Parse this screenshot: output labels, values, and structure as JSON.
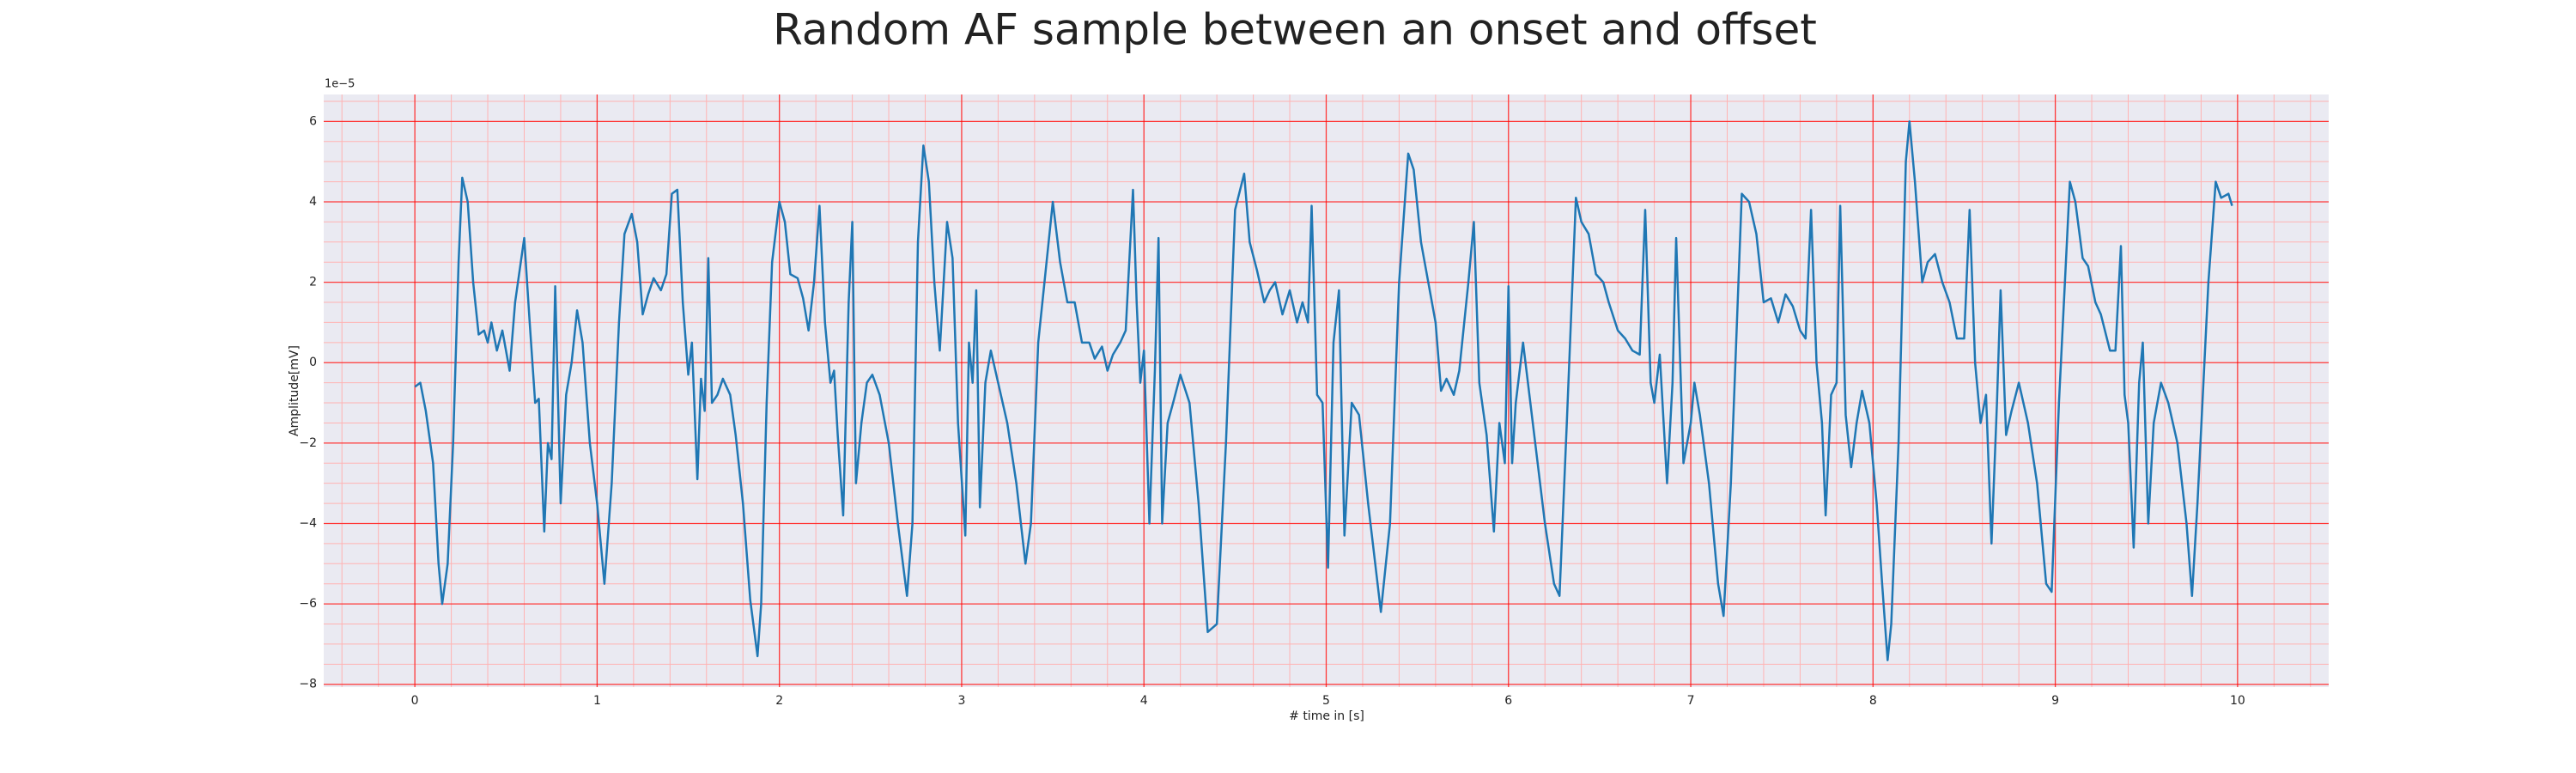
{
  "chart_data": {
    "type": "line",
    "title": "Random AF sample between an onset and offset",
    "x_label": "# time in [s]",
    "y_label": "Amplitude[mV]",
    "y_offset_label": "1e−5",
    "color": "#1f77b4",
    "background": "#eaeaf2",
    "grid": true,
    "grid_color": "#ff0000",
    "minor_grid": {
      "x_step": 0.2,
      "y_step": 0.5,
      "color": "#ffb3b3"
    },
    "xlim": [
      -0.5,
      10.5
    ],
    "ylim": [
      -8.07,
      6.67
    ],
    "xticks": [
      0,
      1,
      2,
      3,
      4,
      5,
      6,
      7,
      8,
      9,
      10
    ],
    "yticks": [
      {
        "value": -8,
        "label": "−8"
      },
      {
        "value": -6,
        "label": "−6"
      },
      {
        "value": -4,
        "label": "−4"
      },
      {
        "value": -2,
        "label": "−2"
      },
      0,
      2,
      4,
      6
    ],
    "x": [
      0,
      0.03,
      0.06,
      0.1,
      0.13,
      0.15,
      0.18,
      0.21,
      0.24,
      0.26,
      0.29,
      0.32,
      0.35,
      0.38,
      0.4,
      0.42,
      0.45,
      0.48,
      0.52,
      0.55,
      0.6,
      0.63,
      0.66,
      0.68,
      0.71,
      0.73,
      0.75,
      0.77,
      0.8,
      0.83,
      0.86,
      0.89,
      0.92,
      0.96,
      1,
      1.04,
      1.08,
      1.12,
      1.15,
      1.19,
      1.22,
      1.25,
      1.28,
      1.31,
      1.35,
      1.38,
      1.41,
      1.44,
      1.47,
      1.5,
      1.52,
      1.55,
      1.57,
      1.59,
      1.61,
      1.63,
      1.66,
      1.69,
      1.73,
      1.76,
      1.8,
      1.84,
      1.88,
      1.9,
      1.93,
      1.96,
      2,
      2.03,
      2.06,
      2.1,
      2.13,
      2.16,
      2.19,
      2.22,
      2.25,
      2.28,
      2.3,
      2.32,
      2.35,
      2.38,
      2.4,
      2.42,
      2.45,
      2.48,
      2.51,
      2.55,
      2.6,
      2.65,
      2.7,
      2.73,
      2.76,
      2.79,
      2.82,
      2.85,
      2.88,
      2.92,
      2.95,
      2.98,
      3.02,
      3.04,
      3.06,
      3.08,
      3.1,
      3.13,
      3.16,
      3.2,
      3.25,
      3.3,
      3.35,
      3.38,
      3.42,
      3.5,
      3.54,
      3.58,
      3.62,
      3.66,
      3.7,
      3.73,
      3.77,
      3.8,
      3.83,
      3.87,
      3.9,
      3.94,
      3.96,
      3.98,
      4,
      4.03,
      4.06,
      4.08,
      4.1,
      4.13,
      4.16,
      4.2,
      4.25,
      4.3,
      4.35,
      4.4,
      4.45,
      4.5,
      4.55,
      4.58,
      4.62,
      4.66,
      4.69,
      4.72,
      4.76,
      4.8,
      4.84,
      4.87,
      4.9,
      4.92,
      4.95,
      4.98,
      5.01,
      5.04,
      5.07,
      5.1,
      5.14,
      5.18,
      5.23,
      5.3,
      5.35,
      5.4,
      5.45,
      5.48,
      5.52,
      5.56,
      5.6,
      5.63,
      5.66,
      5.7,
      5.73,
      5.78,
      5.81,
      5.84,
      5.88,
      5.92,
      5.95,
      5.98,
      6,
      6.02,
      6.04,
      6.08,
      6.12,
      6.16,
      6.2,
      6.25,
      6.28,
      6.32,
      6.37,
      6.4,
      6.44,
      6.48,
      6.52,
      6.55,
      6.6,
      6.64,
      6.68,
      6.72,
      6.75,
      6.78,
      6.8,
      6.83,
      6.87,
      6.9,
      6.92,
      6.96,
      7,
      7.02,
      7.05,
      7.1,
      7.15,
      7.18,
      7.22,
      7.28,
      7.32,
      7.36,
      7.4,
      7.44,
      7.48,
      7.52,
      7.56,
      7.6,
      7.63,
      7.66,
      7.69,
      7.72,
      7.74,
      7.77,
      7.8,
      7.82,
      7.85,
      7.88,
      7.91,
      7.94,
      7.98,
      8.02,
      8.05,
      8.08,
      8.1,
      8.14,
      8.18,
      8.2,
      8.23,
      8.27,
      8.3,
      8.34,
      8.38,
      8.42,
      8.46,
      8.5,
      8.53,
      8.56,
      8.59,
      8.62,
      8.65,
      8.68,
      8.7,
      8.73,
      8.76,
      8.8,
      8.85,
      8.9,
      8.95,
      8.98,
      9.02,
      9.08,
      9.11,
      9.15,
      9.18,
      9.22,
      9.25,
      9.3,
      9.33,
      9.36,
      9.38,
      9.4,
      9.43,
      9.46,
      9.48,
      9.51,
      9.54,
      9.58,
      9.62,
      9.67,
      9.72,
      9.75,
      9.78,
      9.84,
      9.88,
      9.91,
      9.95,
      9.97
    ],
    "values": [
      -0.6,
      -0.5,
      -1.2,
      -2.5,
      -5.0,
      -6.0,
      -5.0,
      -2.0,
      2.5,
      4.6,
      4.0,
      2.0,
      0.7,
      0.8,
      0.5,
      1.0,
      0.3,
      0.8,
      -0.2,
      1.5,
      3.1,
      1.0,
      -1.0,
      -0.9,
      -4.2,
      -2.0,
      -2.4,
      1.9,
      -3.5,
      -0.8,
      0.0,
      1.3,
      0.5,
      -2.0,
      -3.5,
      -5.5,
      -3.0,
      1.0,
      3.2,
      3.7,
      3.0,
      1.2,
      1.7,
      2.1,
      1.8,
      2.2,
      4.2,
      4.3,
      1.5,
      -0.3,
      0.5,
      -2.9,
      -0.4,
      -1.2,
      2.6,
      -1.0,
      -0.8,
      -0.4,
      -0.8,
      -1.8,
      -3.5,
      -5.9,
      -7.3,
      -6.0,
      -1.0,
      2.5,
      4.0,
      3.5,
      2.2,
      2.1,
      1.6,
      0.8,
      2.0,
      3.9,
      1.0,
      -0.5,
      -0.2,
      -1.8,
      -3.8,
      1.5,
      3.5,
      -3.0,
      -1.5,
      -0.5,
      -0.3,
      -0.8,
      -2.0,
      -4.0,
      -5.8,
      -4.0,
      3.0,
      5.4,
      4.5,
      2.0,
      0.3,
      3.5,
      2.6,
      -1.5,
      -4.3,
      0.5,
      -0.5,
      1.8,
      -3.6,
      -0.5,
      0.3,
      -0.5,
      -1.5,
      -3.0,
      -5.0,
      -4.0,
      0.5,
      4.0,
      2.5,
      1.5,
      1.5,
      0.5,
      0.5,
      0.1,
      0.4,
      -0.2,
      0.2,
      0.5,
      0.8,
      4.3,
      1.5,
      -0.5,
      0.3,
      -4.0,
      -0.2,
      3.1,
      -4.0,
      -1.5,
      -1.0,
      -0.3,
      -1.0,
      -3.5,
      -6.7,
      -6.5,
      -2.0,
      3.8,
      4.7,
      3.0,
      2.3,
      1.5,
      1.8,
      2.0,
      1.2,
      1.8,
      1.0,
      1.5,
      1.0,
      3.9,
      -0.8,
      -1.0,
      -5.1,
      0.5,
      1.8,
      -4.3,
      -1.0,
      -1.3,
      -3.5,
      -6.2,
      -4.0,
      2.0,
      5.2,
      4.8,
      3.0,
      2.0,
      1.0,
      -0.7,
      -0.4,
      -0.8,
      -0.2,
      2.0,
      3.5,
      -0.5,
      -1.8,
      -4.2,
      -1.5,
      -2.5,
      1.9,
      -2.5,
      -1.0,
      0.5,
      -1.0,
      -2.5,
      -4.0,
      -5.5,
      -5.8,
      -1.5,
      4.1,
      3.5,
      3.2,
      2.2,
      2.0,
      1.5,
      0.8,
      0.6,
      0.3,
      0.2,
      3.8,
      -0.5,
      -1.0,
      0.2,
      -3.0,
      -0.5,
      3.1,
      -2.5,
      -1.5,
      -0.5,
      -1.3,
      -3.0,
      -5.5,
      -6.3,
      -3.0,
      4.2,
      4.0,
      3.2,
      1.5,
      1.6,
      1.0,
      1.7,
      1.4,
      0.8,
      0.6,
      3.8,
      0.0,
      -1.5,
      -3.8,
      -0.8,
      -0.5,
      3.9,
      -1.3,
      -2.6,
      -1.5,
      -0.7,
      -1.5,
      -3.5,
      -5.5,
      -7.4,
      -6.5,
      -2.0,
      5.0,
      6.0,
      4.5,
      2.0,
      2.5,
      2.7,
      2.0,
      1.5,
      0.6,
      0.6,
      3.8,
      0.0,
      -1.5,
      -0.8,
      -4.5,
      -1.0,
      1.8,
      -1.8,
      -1.2,
      -0.5,
      -1.5,
      -3.0,
      -5.5,
      -5.7,
      -1.0,
      4.5,
      4.0,
      2.6,
      2.4,
      1.5,
      1.2,
      0.3,
      0.3,
      2.9,
      -0.8,
      -1.5,
      -4.6,
      -0.5,
      0.5,
      -4.0,
      -1.5,
      -0.5,
      -1.0,
      -2.0,
      -4.0,
      -5.8,
      -3.5,
      2.0,
      4.5,
      4.1,
      4.2,
      3.9
    ]
  }
}
